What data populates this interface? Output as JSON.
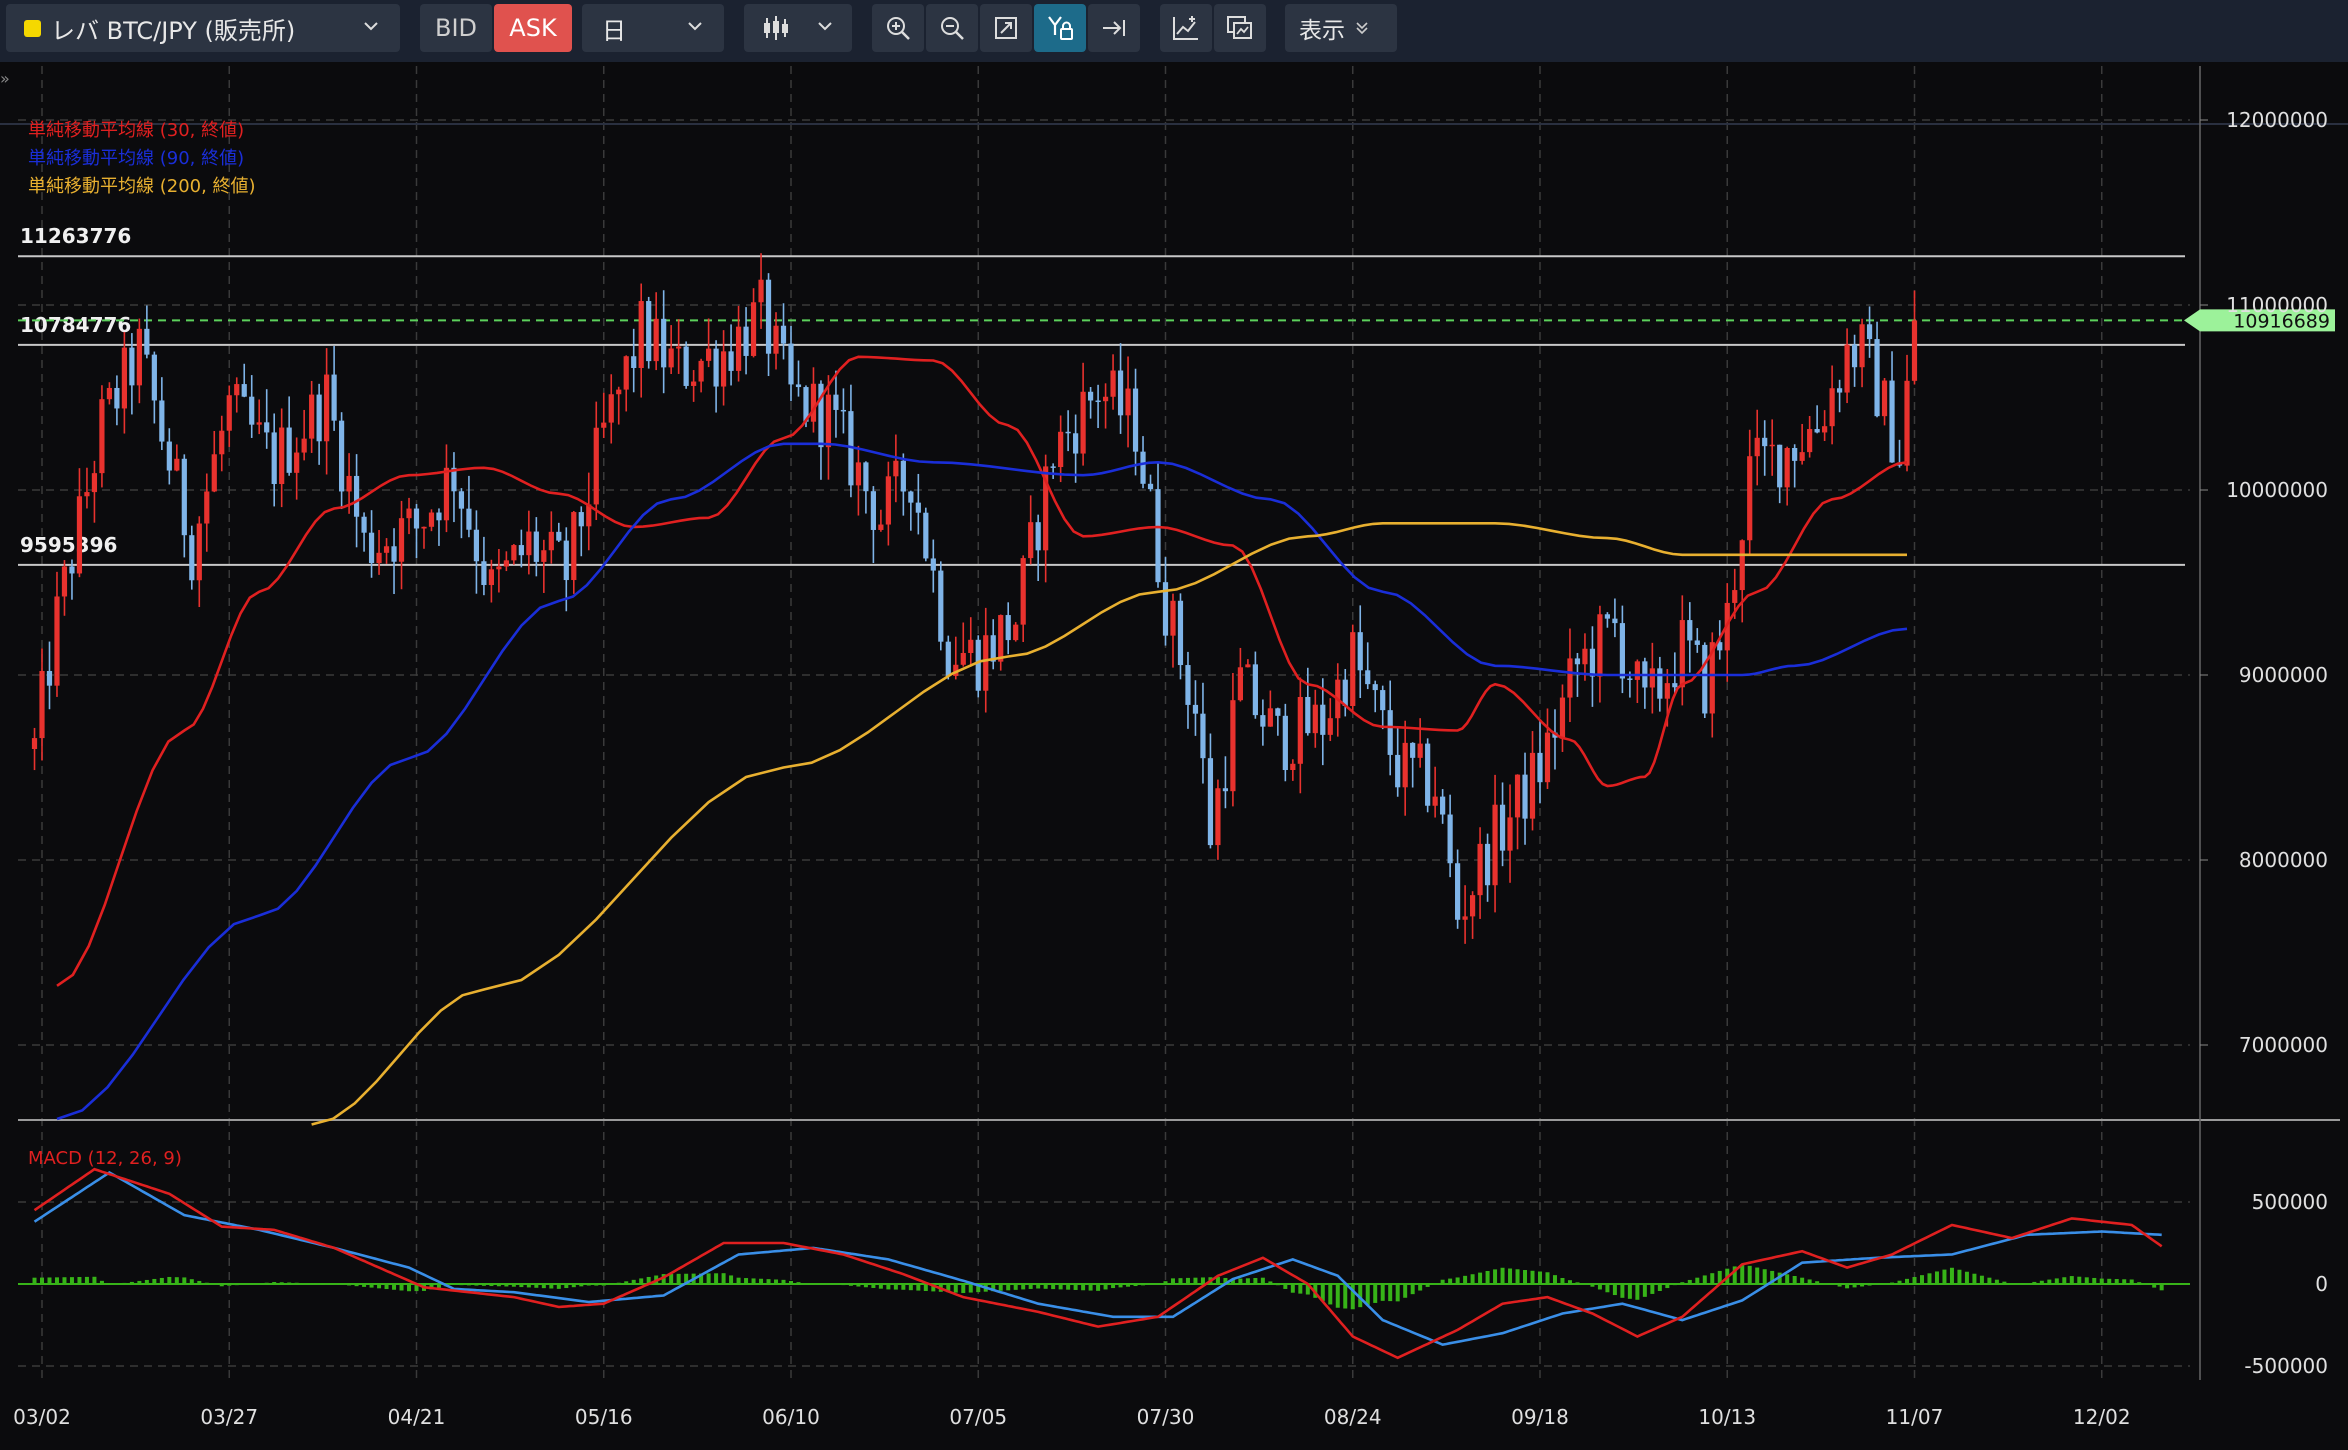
{
  "toolbar": {
    "symbol": "レバ BTC/JPY (販売所)",
    "bid_label": "BID",
    "ask_label": "ASK",
    "period": "日",
    "display_label": "表示",
    "colors": {
      "bar_bg": "#1b2230",
      "button_bg": "#2c3442",
      "ask_bg": "#e0524e",
      "active_tool": "#1d6b8a",
      "symbol_swatch": "#f5d800"
    }
  },
  "chart_data": [
    {
      "type": "candlestick",
      "title": "",
      "instrument": "レバ BTC/JPY (販売所)",
      "period": "日",
      "indicators": [
        {
          "name": "単純移動平均線 (30, 終値)",
          "color": "#e02020"
        },
        {
          "name": "単純移動平均線 (90, 終値)",
          "color": "#1a2ed8"
        },
        {
          "name": "単純移動平均線 (200, 終値)",
          "color": "#e8b030"
        }
      ],
      "y_ticks": [
        7000000,
        8000000,
        9000000,
        10000000,
        11000000,
        12000000
      ],
      "ylim": [
        6550000,
        12250000
      ],
      "x_ticks": [
        "03/02",
        "03/27",
        "04/21",
        "05/16",
        "06/10",
        "07/05",
        "07/30",
        "08/24",
        "09/18",
        "10/13",
        "11/07",
        "12/02"
      ],
      "horizontal_lines": [
        11263776,
        10784776,
        9595396
      ],
      "current_price": 10916689,
      "ohlc_anchors": [
        {
          "date": "03/01",
          "close": 8600000
        },
        {
          "date": "03/04",
          "close": 9300000
        },
        {
          "date": "03/10",
          "close": 10350000
        },
        {
          "date": "03/15",
          "close": 10750000
        },
        {
          "date": "03/22",
          "close": 9700000
        },
        {
          "date": "03/27",
          "close": 10450000
        },
        {
          "date": "04/02",
          "close": 10150000
        },
        {
          "date": "04/09",
          "close": 10500000
        },
        {
          "date": "04/14",
          "close": 9700000
        },
        {
          "date": "04/21",
          "close": 9800000
        },
        {
          "date": "04/26",
          "close": 10100000
        },
        {
          "date": "05/01",
          "close": 9450000
        },
        {
          "date": "05/06",
          "close": 9700000
        },
        {
          "date": "05/11",
          "close": 9550000
        },
        {
          "date": "05/16",
          "close": 10300000
        },
        {
          "date": "05/21",
          "close": 10850000
        },
        {
          "date": "05/26",
          "close": 10650000
        },
        {
          "date": "06/01",
          "close": 10750000
        },
        {
          "date": "06/06",
          "close": 10950000
        },
        {
          "date": "06/10",
          "close": 10500000
        },
        {
          "date": "06/15",
          "close": 10400000
        },
        {
          "date": "06/22",
          "close": 9850000
        },
        {
          "date": "06/26",
          "close": 10100000
        },
        {
          "date": "07/01",
          "close": 9150000
        },
        {
          "date": "07/05",
          "close": 9100000
        },
        {
          "date": "07/10",
          "close": 9300000
        },
        {
          "date": "07/15",
          "close": 10200000
        },
        {
          "date": "07/21",
          "close": 10550000
        },
        {
          "date": "07/26",
          "close": 10350000
        },
        {
          "date": "07/30",
          "close": 9400000
        },
        {
          "date": "08/03",
          "close": 8800000
        },
        {
          "date": "08/05",
          "close": 8150000
        },
        {
          "date": "08/09",
          "close": 8950000
        },
        {
          "date": "08/14",
          "close": 8650000
        },
        {
          "date": "08/20",
          "close": 8750000
        },
        {
          "date": "08/24",
          "close": 9100000
        },
        {
          "date": "08/30",
          "close": 8500000
        },
        {
          "date": "09/04",
          "close": 8400000
        },
        {
          "date": "09/07",
          "close": 7700000
        },
        {
          "date": "09/11",
          "close": 8050000
        },
        {
          "date": "09/15",
          "close": 8300000
        },
        {
          "date": "09/18",
          "close": 8500000
        },
        {
          "date": "09/23",
          "close": 9050000
        },
        {
          "date": "09/28",
          "close": 9250000
        },
        {
          "date": "10/02",
          "close": 8800000
        },
        {
          "date": "10/07",
          "close": 9150000
        },
        {
          "date": "10/10",
          "close": 8950000
        },
        {
          "date": "10/13",
          "close": 9300000
        },
        {
          "date": "10/16",
          "close": 10100000
        },
        {
          "date": "10/20",
          "close": 10200000
        },
        {
          "date": "10/25",
          "close": 10350000
        },
        {
          "date": "10/29",
          "close": 10750000
        },
        {
          "date": "10/31",
          "close": 10750000
        },
        {
          "date": "11/02",
          "close": 10550000
        },
        {
          "date": "11/05",
          "close": 10200000
        },
        {
          "date": "11/07",
          "close": 10916689
        }
      ],
      "moving_averages": {
        "sma30": [
          [
            3,
            7320000
          ],
          [
            20,
            8700000
          ],
          [
            30,
            9450000
          ],
          [
            40,
            9900000
          ],
          [
            50,
            10080000
          ],
          [
            60,
            10120000
          ],
          [
            70,
            9980000
          ],
          [
            80,
            9800000
          ],
          [
            90,
            9850000
          ],
          [
            100,
            10280000
          ],
          [
            110,
            10720000
          ],
          [
            120,
            10700000
          ],
          [
            130,
            10350000
          ],
          [
            140,
            9750000
          ],
          [
            150,
            9800000
          ],
          [
            160,
            9700000
          ],
          [
            170,
            8950000
          ],
          [
            180,
            8720000
          ],
          [
            190,
            8700000
          ],
          [
            195,
            8950000
          ],
          [
            205,
            8650000
          ],
          [
            210,
            8400000
          ],
          [
            215,
            8450000
          ],
          [
            220,
            8950000
          ],
          [
            230,
            9450000
          ],
          [
            240,
            9950000
          ],
          [
            250,
            10150000
          ]
        ],
        "sma90": [
          [
            3,
            6600000
          ],
          [
            30,
            7700000
          ],
          [
            50,
            8550000
          ],
          [
            70,
            9400000
          ],
          [
            85,
            9950000
          ],
          [
            100,
            10250000
          ],
          [
            105,
            10250000
          ],
          [
            120,
            10150000
          ],
          [
            140,
            10080000
          ],
          [
            150,
            10150000
          ],
          [
            165,
            9950000
          ],
          [
            180,
            9450000
          ],
          [
            195,
            9050000
          ],
          [
            210,
            9000000
          ],
          [
            228,
            9000000
          ],
          [
            235,
            9050000
          ],
          [
            250,
            9250000
          ]
        ],
        "sma200": [
          [
            37,
            6570000
          ],
          [
            60,
            7300000
          ],
          [
            100,
            8500000
          ],
          [
            130,
            9100000
          ],
          [
            150,
            9450000
          ],
          [
            170,
            9750000
          ],
          [
            180,
            9820000
          ],
          [
            195,
            9820000
          ],
          [
            210,
            9740000
          ],
          [
            220,
            9650000
          ],
          [
            230,
            9650000
          ],
          [
            250,
            9650000
          ]
        ]
      }
    },
    {
      "type": "macd",
      "title": "MACD (12, 26, 9)",
      "y_ticks": [
        -500000,
        0,
        500000
      ],
      "ylim": [
        -560000,
        760000
      ],
      "series": [
        {
          "name": "MACD",
          "color": "#e02020"
        },
        {
          "name": "Signal",
          "color": "#3a8fe8"
        },
        {
          "name": "Histogram",
          "color": "#37b318"
        }
      ],
      "macd_anchors": [
        [
          0,
          450000
        ],
        [
          8,
          700000
        ],
        [
          18,
          550000
        ],
        [
          25,
          350000
        ],
        [
          32,
          330000
        ],
        [
          40,
          220000
        ],
        [
          46,
          100000
        ],
        [
          52,
          -20000
        ],
        [
          58,
          -50000
        ],
        [
          64,
          -80000
        ],
        [
          70,
          -140000
        ],
        [
          76,
          -120000
        ],
        [
          84,
          40000
        ],
        [
          92,
          250000
        ],
        [
          100,
          250000
        ],
        [
          108,
          180000
        ],
        [
          116,
          60000
        ],
        [
          124,
          -80000
        ],
        [
          134,
          -170000
        ],
        [
          142,
          -260000
        ],
        [
          150,
          -200000
        ],
        [
          158,
          50000
        ],
        [
          164,
          160000
        ],
        [
          170,
          0
        ],
        [
          176,
          -320000
        ],
        [
          182,
          -450000
        ],
        [
          190,
          -280000
        ],
        [
          196,
          -120000
        ],
        [
          202,
          -80000
        ],
        [
          208,
          -180000
        ],
        [
          214,
          -320000
        ],
        [
          220,
          -200000
        ],
        [
          228,
          120000
        ],
        [
          236,
          200000
        ],
        [
          242,
          100000
        ],
        [
          248,
          180000
        ],
        [
          256,
          360000
        ],
        [
          264,
          280000
        ],
        [
          272,
          400000
        ],
        [
          280,
          360000
        ],
        [
          284,
          230000
        ]
      ],
      "signal_anchors": [
        [
          0,
          380000
        ],
        [
          10,
          680000
        ],
        [
          20,
          420000
        ],
        [
          30,
          330000
        ],
        [
          40,
          220000
        ],
        [
          50,
          100000
        ],
        [
          56,
          -30000
        ],
        [
          64,
          -50000
        ],
        [
          74,
          -110000
        ],
        [
          84,
          -70000
        ],
        [
          94,
          180000
        ],
        [
          104,
          220000
        ],
        [
          114,
          150000
        ],
        [
          124,
          20000
        ],
        [
          134,
          -120000
        ],
        [
          144,
          -200000
        ],
        [
          152,
          -200000
        ],
        [
          160,
          30000
        ],
        [
          168,
          150000
        ],
        [
          174,
          50000
        ],
        [
          180,
          -220000
        ],
        [
          188,
          -370000
        ],
        [
          196,
          -300000
        ],
        [
          204,
          -180000
        ],
        [
          212,
          -120000
        ],
        [
          220,
          -220000
        ],
        [
          228,
          -100000
        ],
        [
          236,
          130000
        ],
        [
          246,
          160000
        ],
        [
          256,
          180000
        ],
        [
          266,
          300000
        ],
        [
          276,
          320000
        ],
        [
          284,
          300000
        ]
      ]
    }
  ]
}
